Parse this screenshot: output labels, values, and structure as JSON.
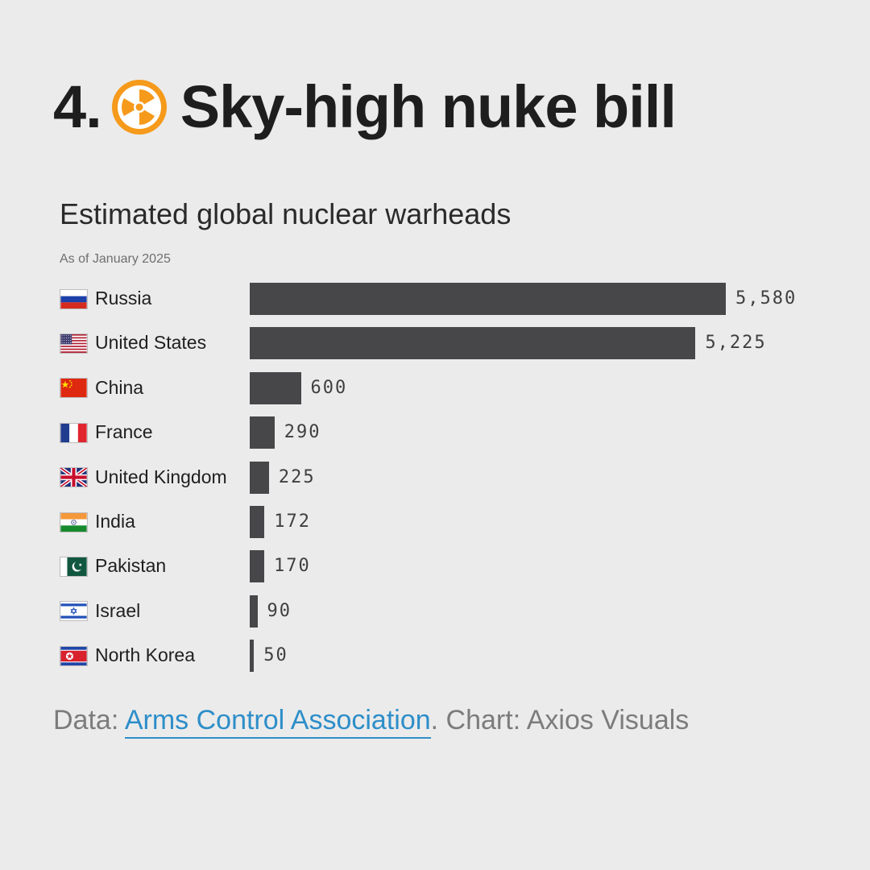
{
  "headline": {
    "number": "4.",
    "text": "Sky-high nuke bill",
    "icon": "radiation-icon"
  },
  "chart_data": {
    "type": "bar",
    "orientation": "horizontal",
    "title": "Estimated global nuclear warheads",
    "subtitle": "As of January 2025",
    "categories": [
      "Russia",
      "United States",
      "China",
      "France",
      "United Kingdom",
      "India",
      "Pakistan",
      "Israel",
      "North Korea"
    ],
    "values": [
      5580,
      5225,
      600,
      290,
      225,
      172,
      170,
      90,
      50
    ],
    "value_labels": [
      "5,580",
      "5,225",
      "600",
      "290",
      "225",
      "172",
      "170",
      "90",
      "50"
    ],
    "flag_icons": [
      "flag-russia-icon",
      "flag-united-states-icon",
      "flag-china-icon",
      "flag-france-icon",
      "flag-united-kingdom-icon",
      "flag-india-icon",
      "flag-pakistan-icon",
      "flag-israel-icon",
      "flag-north-korea-icon"
    ],
    "xlim": [
      0,
      5580
    ],
    "bar_color": "#47474a",
    "grid": false
  },
  "footer": {
    "prefix": "Data: ",
    "source": "Arms Control Association",
    "suffix": ". Chart: Axios Visuals"
  },
  "colors": {
    "background": "#ebebeb",
    "link": "#2d8ec9",
    "radiation": "#f59a1b"
  }
}
